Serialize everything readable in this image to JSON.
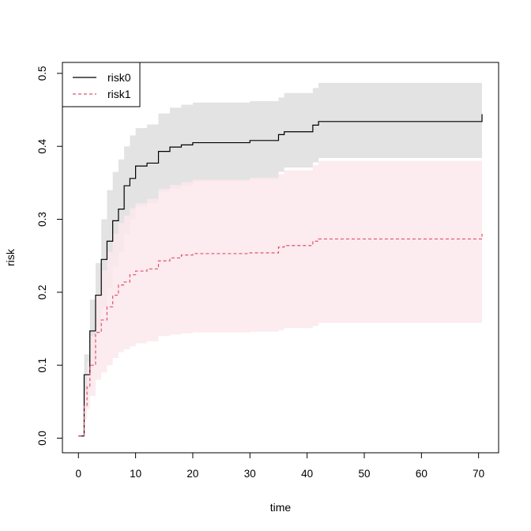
{
  "chart_data": {
    "type": "line",
    "title": "",
    "xlabel": "time",
    "ylabel": "risk",
    "xlim": [
      -2.8,
      73.5
    ],
    "ylim": [
      -0.02,
      0.515
    ],
    "x_ticks": [
      0,
      10,
      20,
      30,
      40,
      50,
      60,
      70
    ],
    "y_ticks": [
      0.0,
      0.1,
      0.2,
      0.3,
      0.4,
      0.5
    ],
    "y_tick_labels": [
      "0.0",
      "0.1",
      "0.2",
      "0.3",
      "0.4",
      "0.5"
    ],
    "grid": false,
    "legend": "top-left",
    "step": true,
    "series": [
      {
        "name": "risk0",
        "color": "#000000",
        "band_color": "#e3e3e3",
        "dash": "solid",
        "x": [
          0,
          1,
          2,
          3,
          4,
          5,
          6,
          7,
          8,
          9,
          10,
          12,
          14,
          16,
          18,
          20,
          30,
          35,
          36,
          41,
          42,
          70,
          70.6
        ],
        "y": [
          0.003,
          0.087,
          0.147,
          0.196,
          0.245,
          0.27,
          0.298,
          0.314,
          0.346,
          0.356,
          0.373,
          0.377,
          0.393,
          0.399,
          0.402,
          0.405,
          0.408,
          0.416,
          0.42,
          0.429,
          0.434,
          0.434,
          0.444
        ],
        "lower": [
          0.003,
          0.06,
          0.105,
          0.152,
          0.18,
          0.205,
          0.235,
          0.255,
          0.28,
          0.3,
          0.318,
          0.322,
          0.338,
          0.342,
          0.346,
          0.352,
          0.355,
          0.365,
          0.371,
          0.378,
          0.384,
          0.384,
          0.386
        ],
        "upper": [
          0.003,
          0.115,
          0.19,
          0.24,
          0.3,
          0.34,
          0.365,
          0.382,
          0.4,
          0.415,
          0.425,
          0.43,
          0.445,
          0.453,
          0.457,
          0.46,
          0.462,
          0.467,
          0.473,
          0.48,
          0.487,
          0.487,
          0.487
        ]
      },
      {
        "name": "risk1",
        "color": "#df536b",
        "band_color": "#fbe8ec",
        "dash": "dashed",
        "x": [
          0,
          1,
          1.5,
          2,
          3,
          4,
          5,
          6,
          7,
          8,
          9,
          10,
          12,
          14,
          16,
          18,
          20,
          30,
          35,
          36,
          41,
          42,
          70,
          70.6
        ],
        "y": [
          0.003,
          0.044,
          0.07,
          0.1,
          0.145,
          0.162,
          0.18,
          0.196,
          0.21,
          0.214,
          0.224,
          0.229,
          0.232,
          0.243,
          0.247,
          0.251,
          0.253,
          0.254,
          0.262,
          0.264,
          0.27,
          0.273,
          0.273,
          0.28
        ],
        "lower": [
          0.003,
          0.025,
          0.04,
          0.058,
          0.08,
          0.09,
          0.1,
          0.11,
          0.118,
          0.122,
          0.126,
          0.13,
          0.133,
          0.14,
          0.142,
          0.144,
          0.145,
          0.146,
          0.148,
          0.151,
          0.154,
          0.158,
          0.158,
          0.158
        ],
        "upper": [
          0.003,
          0.065,
          0.105,
          0.14,
          0.195,
          0.23,
          0.255,
          0.28,
          0.295,
          0.305,
          0.315,
          0.322,
          0.328,
          0.342,
          0.347,
          0.351,
          0.354,
          0.357,
          0.362,
          0.367,
          0.374,
          0.38,
          0.38,
          0.38
        ]
      }
    ]
  }
}
